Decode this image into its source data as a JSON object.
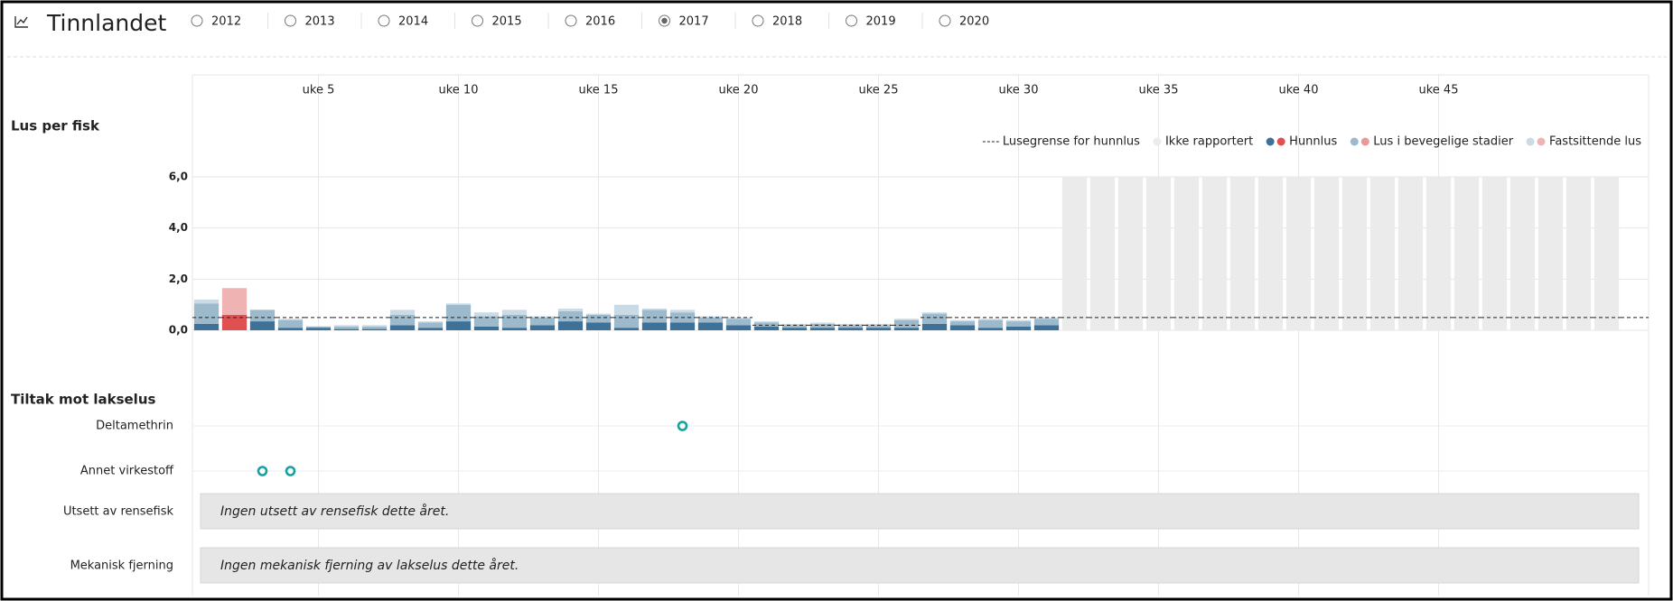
{
  "header": {
    "title": "Tinnlandet",
    "years": [
      "2012",
      "2013",
      "2014",
      "2015",
      "2016",
      "2017",
      "2018",
      "2019",
      "2020"
    ],
    "selected": "2017"
  },
  "chart_data": {
    "type": "bar",
    "title": "Lus per fisk",
    "categories": [
      null,
      null,
      null,
      null,
      "uke 5",
      null,
      null,
      null,
      null,
      "uke 10",
      null,
      null,
      null,
      null,
      "uke 15",
      null,
      null,
      null,
      null,
      "uke 20",
      null,
      null,
      null,
      null,
      "uke 25",
      null,
      null,
      null,
      null,
      "uke 30",
      null,
      null,
      null,
      null,
      "uke 35",
      null,
      null,
      null,
      null,
      "uke 40",
      null,
      null,
      null,
      null,
      "uke 45",
      null,
      null,
      null,
      null,
      null,
      null,
      null
    ],
    "series": [
      {
        "name": "Hunnlus",
        "color": "#3d7197",
        "alert_color": "#e05050",
        "values": [
          0.25,
          0.6,
          0.35,
          0.1,
          0.1,
          0.05,
          0.05,
          0.2,
          0.1,
          0.35,
          0.15,
          0.1,
          0.2,
          0.35,
          0.3,
          0.1,
          0.3,
          0.3,
          0.3,
          0.2,
          0.15,
          0.1,
          0.1,
          0.1,
          0.1,
          0.1,
          0.25,
          0.2,
          0.1,
          0.15,
          0.2,
          null,
          null,
          null,
          null,
          null,
          null,
          null,
          null,
          null,
          null,
          null,
          null,
          null,
          null,
          null,
          null,
          null,
          null,
          null,
          null,
          null
        ]
      },
      {
        "name": "Lus i bevegelige stadier",
        "color": "#9db9cc",
        "alert_color": "#e89a9a",
        "values": [
          0.8,
          0,
          0.45,
          0.3,
          0.05,
          0.1,
          0.1,
          0.4,
          0.2,
          0.65,
          0.4,
          0.5,
          0.3,
          0.4,
          0.3,
          0.5,
          0.5,
          0.4,
          0.2,
          0.25,
          0.15,
          0.1,
          0.15,
          0.1,
          0.1,
          0.3,
          0.4,
          0.15,
          0.3,
          0.2,
          0.25,
          null,
          null,
          null,
          null,
          null,
          null,
          null,
          null,
          null,
          null,
          null,
          null,
          null,
          null,
          null,
          null,
          null,
          null,
          null,
          null,
          null
        ]
      },
      {
        "name": "Fastsittende lus",
        "color": "#cbdbe5",
        "alert_color": "#f0b3b3",
        "values": [
          0.15,
          1.05,
          0,
          0.05,
          0,
          0.05,
          0.05,
          0.2,
          0.05,
          0.05,
          0.15,
          0.2,
          0.05,
          0.1,
          0.05,
          0.4,
          0.05,
          0.1,
          0.05,
          0.05,
          0.05,
          0.05,
          0.05,
          0.05,
          0.05,
          0.05,
          0.05,
          0.05,
          0.05,
          0.05,
          0.05,
          null,
          null,
          null,
          null,
          null,
          null,
          null,
          null,
          null,
          null,
          null,
          null,
          null,
          null,
          null,
          null,
          null,
          null,
          null,
          null,
          null
        ]
      },
      {
        "name": "Ikke rapportert",
        "color": "#ebebeb",
        "values": [
          null,
          null,
          null,
          null,
          null,
          null,
          null,
          null,
          null,
          null,
          null,
          null,
          null,
          null,
          null,
          null,
          null,
          null,
          null,
          null,
          null,
          null,
          null,
          null,
          null,
          null,
          null,
          null,
          null,
          null,
          null,
          6,
          6,
          6,
          6,
          6,
          6,
          6,
          6,
          6,
          6,
          6,
          6,
          6,
          6,
          6,
          6,
          6,
          6,
          6,
          6,
          null
        ]
      }
    ],
    "limit": {
      "name": "Lusegrense for hunnlus",
      "values": [
        0.5,
        0.5,
        0.5,
        0.5,
        0.5,
        0.5,
        0.5,
        0.5,
        0.5,
        0.5,
        0.5,
        0.5,
        0.5,
        0.5,
        0.5,
        0.5,
        0.5,
        0.5,
        0.5,
        0.5,
        0.2,
        0.2,
        0.2,
        0.2,
        0.2,
        0.2,
        0.5,
        0.5,
        0.5,
        0.5,
        0.5,
        0.5,
        0.5,
        0.5,
        0.5,
        0.5,
        0.5,
        0.5,
        0.5,
        0.5,
        0.5,
        0.5,
        0.5,
        0.5,
        0.5,
        0.5,
        0.5,
        0.5,
        0.5,
        0.5,
        0.5,
        0.5
      ]
    },
    "ylim": [
      0,
      6
    ],
    "yticks": [
      {
        "value": 0,
        "label": "0,0"
      },
      {
        "value": 2,
        "label": "2,0"
      },
      {
        "value": 4,
        "label": "4,0"
      },
      {
        "value": 6,
        "label": "6,0"
      }
    ],
    "grid": true,
    "legend": "top-right"
  },
  "treatments": {
    "title": "Tiltak mot lakselus",
    "color": "#16a3a0",
    "rows": [
      {
        "label": "Deltamethrin",
        "weeks": [
          18
        ]
      },
      {
        "label": "Annet virkestoff",
        "weeks": [
          3,
          4
        ]
      },
      {
        "label": "Utsett av rensefisk",
        "message": "Ingen utsett av rensefisk dette året."
      },
      {
        "label": "Mekanisk fjerning",
        "message": "Ingen mekanisk fjerning av lakselus dette året."
      }
    ]
  }
}
